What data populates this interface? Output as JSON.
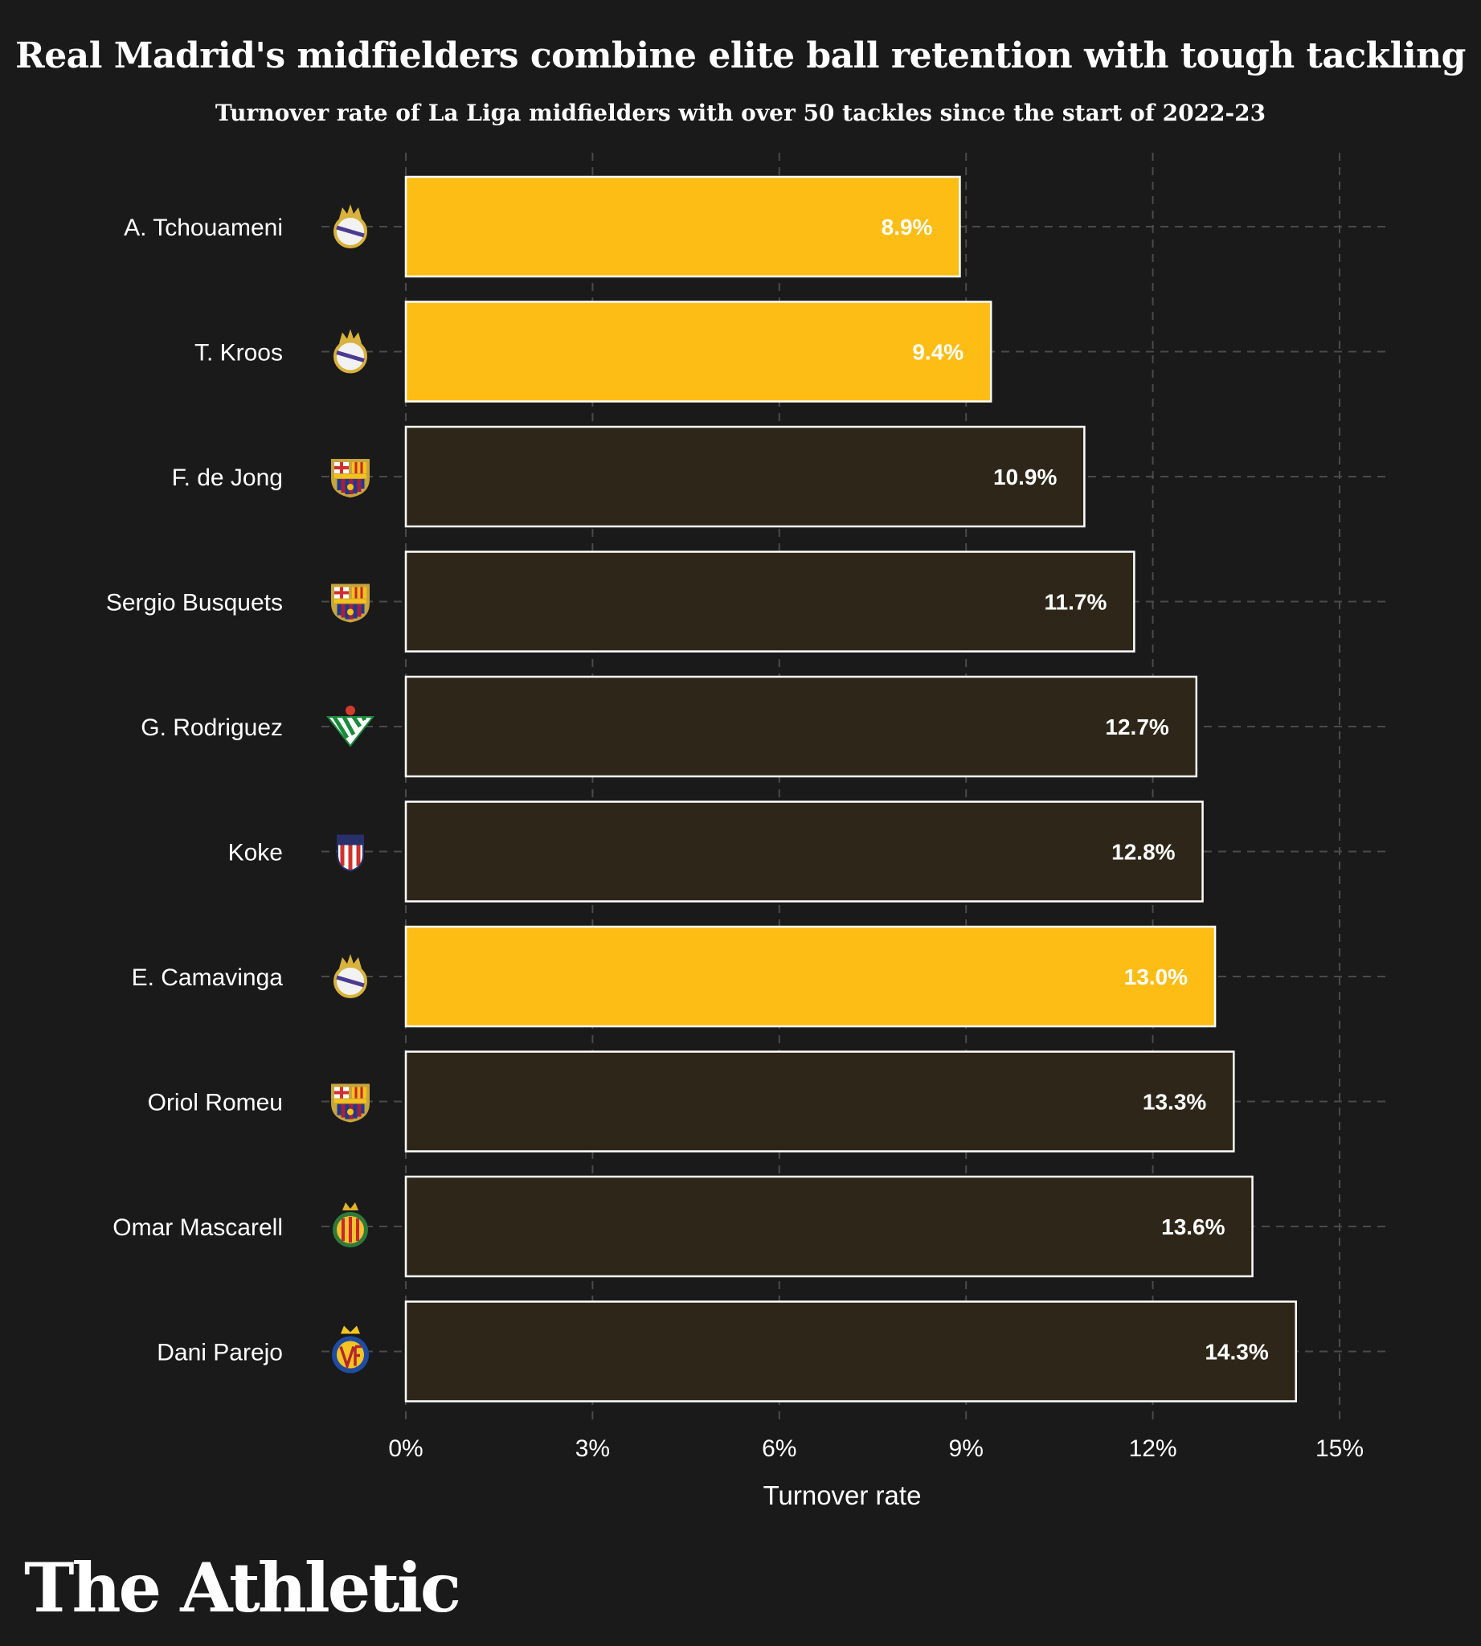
{
  "title": "Real Madrid's midfielders combine elite ball retention with tough tackling",
  "subtitle": "Turnover rate of La Liga midfielders with over 50 tackles since the start of 2022-23",
  "brand": "The Athletic",
  "colors": {
    "background": "#1a1a1a",
    "highlight_bar": "#fdbd15",
    "default_bar": "#2e2719",
    "bar_outline": "#ffffff",
    "grid": "#4a4a4a",
    "text": "#ffffff"
  },
  "chart_data": {
    "type": "bar",
    "orientation": "horizontal",
    "title": "Real Madrid's midfielders combine elite ball retention with tough tackling",
    "subtitle": "Turnover rate of La Liga midfielders with over 50 tackles since the start of 2022-23",
    "xlabel": "Turnover rate",
    "ylabel": "",
    "xlim": [
      0,
      15
    ],
    "xticks": [
      0,
      3,
      6,
      9,
      12,
      15
    ],
    "xtick_labels": [
      "0%",
      "3%",
      "6%",
      "9%",
      "12%",
      "15%"
    ],
    "grid": true,
    "categories": [
      "A. Tchouameni",
      "T. Kroos",
      "F. de Jong",
      "Sergio Busquets",
      "G. Rodriguez",
      "Koke",
      "E. Camavinga",
      "Oriol Romeu",
      "Omar Mascarell",
      "Dani Parejo"
    ],
    "values": [
      8.9,
      9.4,
      10.9,
      11.7,
      12.7,
      12.8,
      13.0,
      13.3,
      13.6,
      14.3
    ],
    "value_labels": [
      "8.9%",
      "9.4%",
      "10.9%",
      "11.7%",
      "12.7%",
      "12.8%",
      "13.0%",
      "13.3%",
      "13.6%",
      "14.3%"
    ],
    "clubs": [
      "real-madrid",
      "real-madrid",
      "barcelona",
      "barcelona",
      "real-betis",
      "atletico-madrid",
      "real-madrid",
      "barcelona",
      "mallorca",
      "villarreal"
    ],
    "highlighted": [
      true,
      true,
      false,
      false,
      false,
      false,
      true,
      false,
      false,
      false
    ]
  }
}
